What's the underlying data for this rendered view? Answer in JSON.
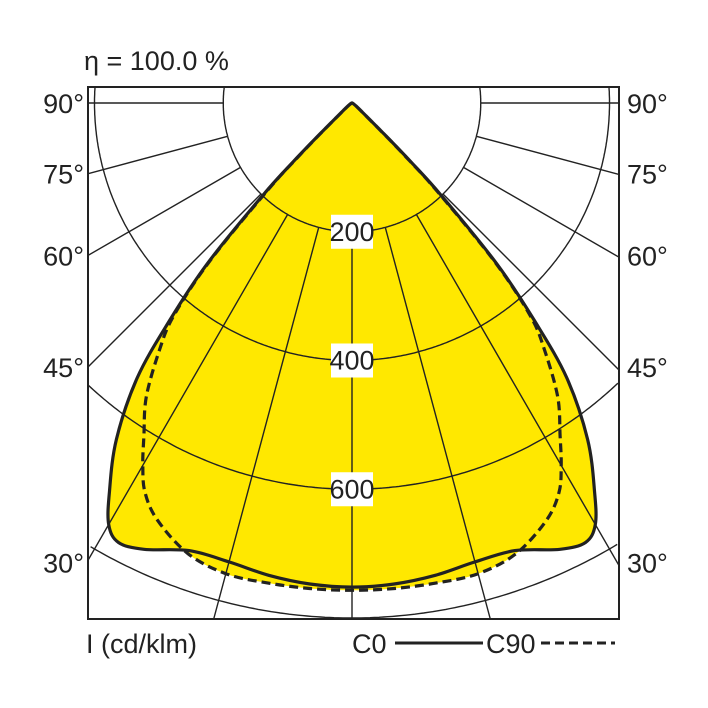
{
  "chart_data": {
    "type": "polar",
    "title": "η = 100.0 %",
    "unit_label": "I (cd/klm)",
    "radial_ticks": [
      200,
      400,
      600
    ],
    "radial_max": 800,
    "angle_labels": [
      "90°",
      "75°",
      "60°",
      "45°",
      "30°"
    ],
    "angle_label_values": [
      90,
      75,
      60,
      45,
      30
    ],
    "grid": true,
    "legend_position": "bottom-right",
    "fill_color": "#FFE800",
    "angles": [
      0,
      5,
      10,
      15,
      20,
      25,
      28,
      30,
      32,
      35,
      38,
      40,
      42,
      44,
      45,
      46,
      50,
      60,
      90
    ],
    "series": [
      {
        "name": "C0",
        "style": "solid",
        "values": [
          752,
          750,
          745,
          738,
          740,
          765,
          773,
          756,
          711,
          638,
          542,
          440,
          336,
          200,
          130,
          70,
          15,
          3,
          0
        ]
      },
      {
        "name": "C90",
        "style": "dashed",
        "values": [
          757,
          757,
          757,
          757,
          745,
          715,
          685,
          650,
          610,
          557,
          485,
          430,
          330,
          190,
          120,
          65,
          14,
          3,
          0
        ]
      }
    ]
  }
}
